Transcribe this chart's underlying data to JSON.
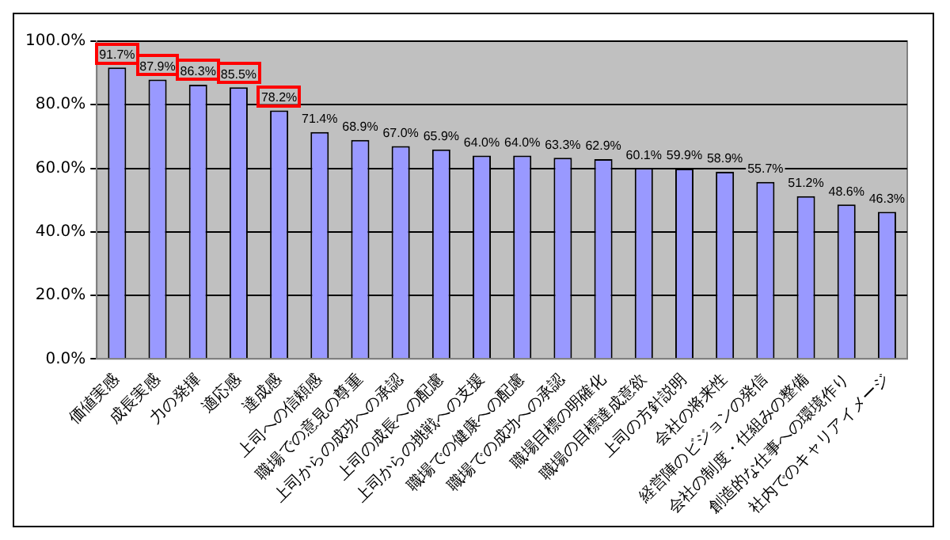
{
  "chart_data": {
    "type": "bar",
    "categories": [
      "価値実感",
      "成長実感",
      "力の発揮",
      "適応感",
      "達成感",
      "上司への信頼感",
      "職場での意見の尊重",
      "上司からの成功への承認",
      "上司の成長への配慮",
      "上司からの挑戦への支援",
      "職場での健康への配慮",
      "職場での成功への承認",
      "職場目標の明確化",
      "職場の目標達成意欲",
      "上司の方針説明",
      "会社の将来性",
      "経営陣のビジョンの発信",
      "会社の制度・仕組みの整備",
      "創造的な仕事への環境作り",
      "社内でのキャリアイメージ"
    ],
    "values": [
      91.7,
      87.9,
      86.3,
      85.5,
      78.2,
      71.4,
      68.9,
      67.0,
      65.9,
      64.0,
      64.0,
      63.3,
      62.9,
      60.1,
      59.9,
      58.9,
      55.7,
      51.2,
      48.6,
      46.3
    ],
    "value_labels": [
      "91.7%",
      "87.9%",
      "86.3%",
      "85.5%",
      "78.2%",
      "71.4%",
      "68.9%",
      "67.0%",
      "65.9%",
      "64.0%",
      "64.0%",
      "63.3%",
      "62.9%",
      "60.1%",
      "59.9%",
      "58.9%",
      "55.7%",
      "51.2%",
      "48.6%",
      "46.3%"
    ],
    "color": "#9999ff",
    "ylim": [
      0,
      100
    ],
    "yticks": [
      {
        "value": 0,
        "label": "0.0%"
      },
      {
        "value": 20,
        "label": "20.0%"
      },
      {
        "value": 40,
        "label": "40.0%"
      },
      {
        "value": 60,
        "label": "60.0%"
      },
      {
        "value": 80,
        "label": "80.0%"
      },
      {
        "value": 100,
        "label": "100.0%"
      }
    ],
    "grid": "y",
    "legend": false
  }
}
